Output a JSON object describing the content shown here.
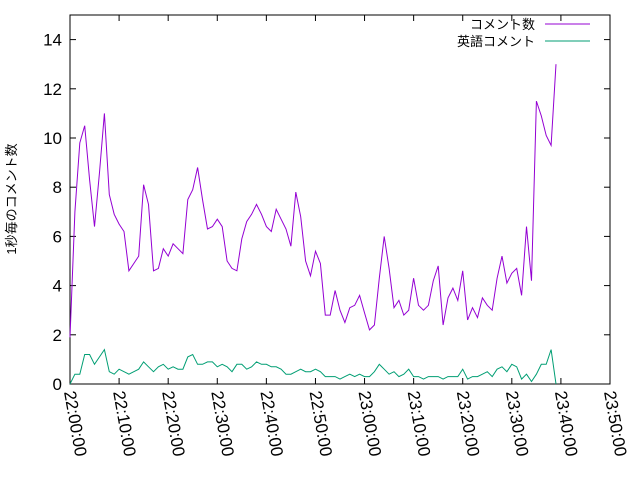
{
  "chart_data": {
    "type": "line",
    "title": "",
    "xlabel": "",
    "ylabel": "1秒毎のコメント数",
    "ylim": [
      0,
      15
    ],
    "yticks": [
      0,
      2,
      4,
      6,
      8,
      10,
      12,
      14
    ],
    "xlim_minutes": [
      0,
      110
    ],
    "xticks": [
      "22:00:00",
      "22:10:00",
      "22:20:00",
      "22:30:00",
      "22:40:00",
      "22:50:00",
      "23:00:00",
      "23:10:00",
      "23:20:00",
      "23:30:00",
      "23:40:00",
      "23:50:00"
    ],
    "grid": false,
    "legend_position": "top-right",
    "x_start": "22:00:00",
    "x_step": "1min",
    "series": [
      {
        "name": "コメント数",
        "color": "#9400d3",
        "values": [
          1.9,
          7.0,
          9.8,
          10.5,
          8.3,
          6.4,
          8.6,
          11.0,
          7.7,
          6.9,
          6.5,
          6.2,
          4.6,
          4.9,
          5.2,
          8.1,
          7.3,
          4.6,
          4.7,
          5.5,
          5.2,
          5.7,
          5.5,
          5.3,
          7.5,
          7.9,
          8.8,
          7.5,
          6.3,
          6.4,
          6.7,
          6.4,
          5.0,
          4.7,
          4.6,
          5.9,
          6.6,
          6.9,
          7.3,
          6.9,
          6.4,
          6.2,
          7.1,
          6.7,
          6.3,
          5.6,
          7.8,
          6.8,
          5.0,
          4.4,
          5.4,
          4.9,
          2.8,
          2.8,
          3.8,
          3.0,
          2.5,
          3.1,
          3.2,
          3.6,
          2.9,
          2.2,
          2.4,
          4.3,
          6.0,
          4.7,
          3.1,
          3.4,
          2.8,
          3.0,
          4.3,
          3.2,
          3.0,
          3.2,
          4.2,
          4.8,
          2.4,
          3.5,
          3.9,
          3.4,
          4.6,
          2.6,
          3.1,
          2.7,
          3.5,
          3.2,
          3.0,
          4.3,
          5.2,
          4.1,
          4.5,
          4.7,
          3.6,
          6.4,
          4.2,
          11.5,
          10.9,
          10.1,
          9.7,
          13.0
        ]
      },
      {
        "name": "英語コメント",
        "color": "#009e73",
        "values": [
          0.0,
          0.4,
          0.4,
          1.2,
          1.2,
          0.8,
          1.1,
          1.4,
          0.5,
          0.4,
          0.6,
          0.5,
          0.4,
          0.5,
          0.6,
          0.9,
          0.7,
          0.5,
          0.7,
          0.8,
          0.6,
          0.7,
          0.6,
          0.6,
          1.1,
          1.2,
          0.8,
          0.8,
          0.9,
          0.9,
          0.7,
          0.8,
          0.7,
          0.5,
          0.8,
          0.8,
          0.6,
          0.7,
          0.9,
          0.8,
          0.8,
          0.7,
          0.7,
          0.6,
          0.4,
          0.4,
          0.5,
          0.6,
          0.5,
          0.5,
          0.6,
          0.5,
          0.3,
          0.3,
          0.3,
          0.2,
          0.3,
          0.4,
          0.3,
          0.4,
          0.3,
          0.3,
          0.5,
          0.8,
          0.6,
          0.4,
          0.5,
          0.3,
          0.4,
          0.6,
          0.3,
          0.3,
          0.2,
          0.3,
          0.3,
          0.3,
          0.2,
          0.3,
          0.3,
          0.3,
          0.6,
          0.2,
          0.3,
          0.3,
          0.4,
          0.5,
          0.3,
          0.6,
          0.7,
          0.5,
          0.8,
          0.7,
          0.2,
          0.4,
          0.1,
          0.4,
          0.8,
          0.8,
          1.4,
          0.0
        ]
      }
    ]
  }
}
